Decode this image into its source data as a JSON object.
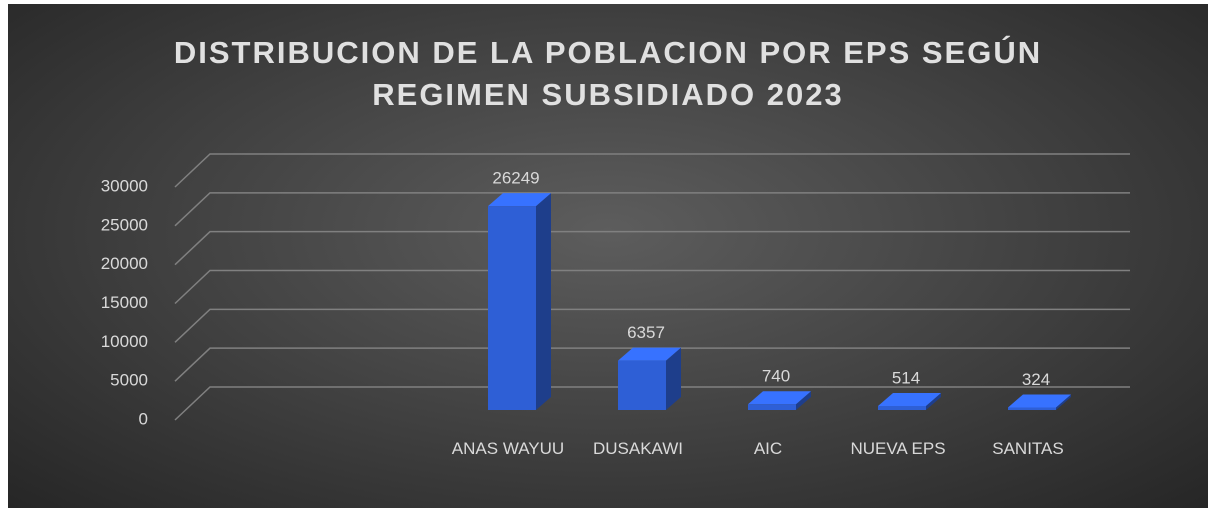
{
  "chart_data": {
    "type": "bar3d",
    "title": "DISTRIBUCION DE LA POBLACION POR EPS SEGÚN REGIMEN SUBSIDIADO 2023",
    "categories": [
      null,
      null,
      "ANAS WAYUU",
      "DUSAKAWI",
      "AIC",
      "NUEVA EPS",
      "SANITAS"
    ],
    "values": [
      null,
      null,
      26249,
      6357,
      740,
      514,
      324
    ],
    "color": "#2e5fd6",
    "ylim": [
      0,
      30000
    ],
    "yticks": [
      0,
      5000,
      10000,
      15000,
      20000,
      25000,
      30000
    ],
    "grid": true
  }
}
